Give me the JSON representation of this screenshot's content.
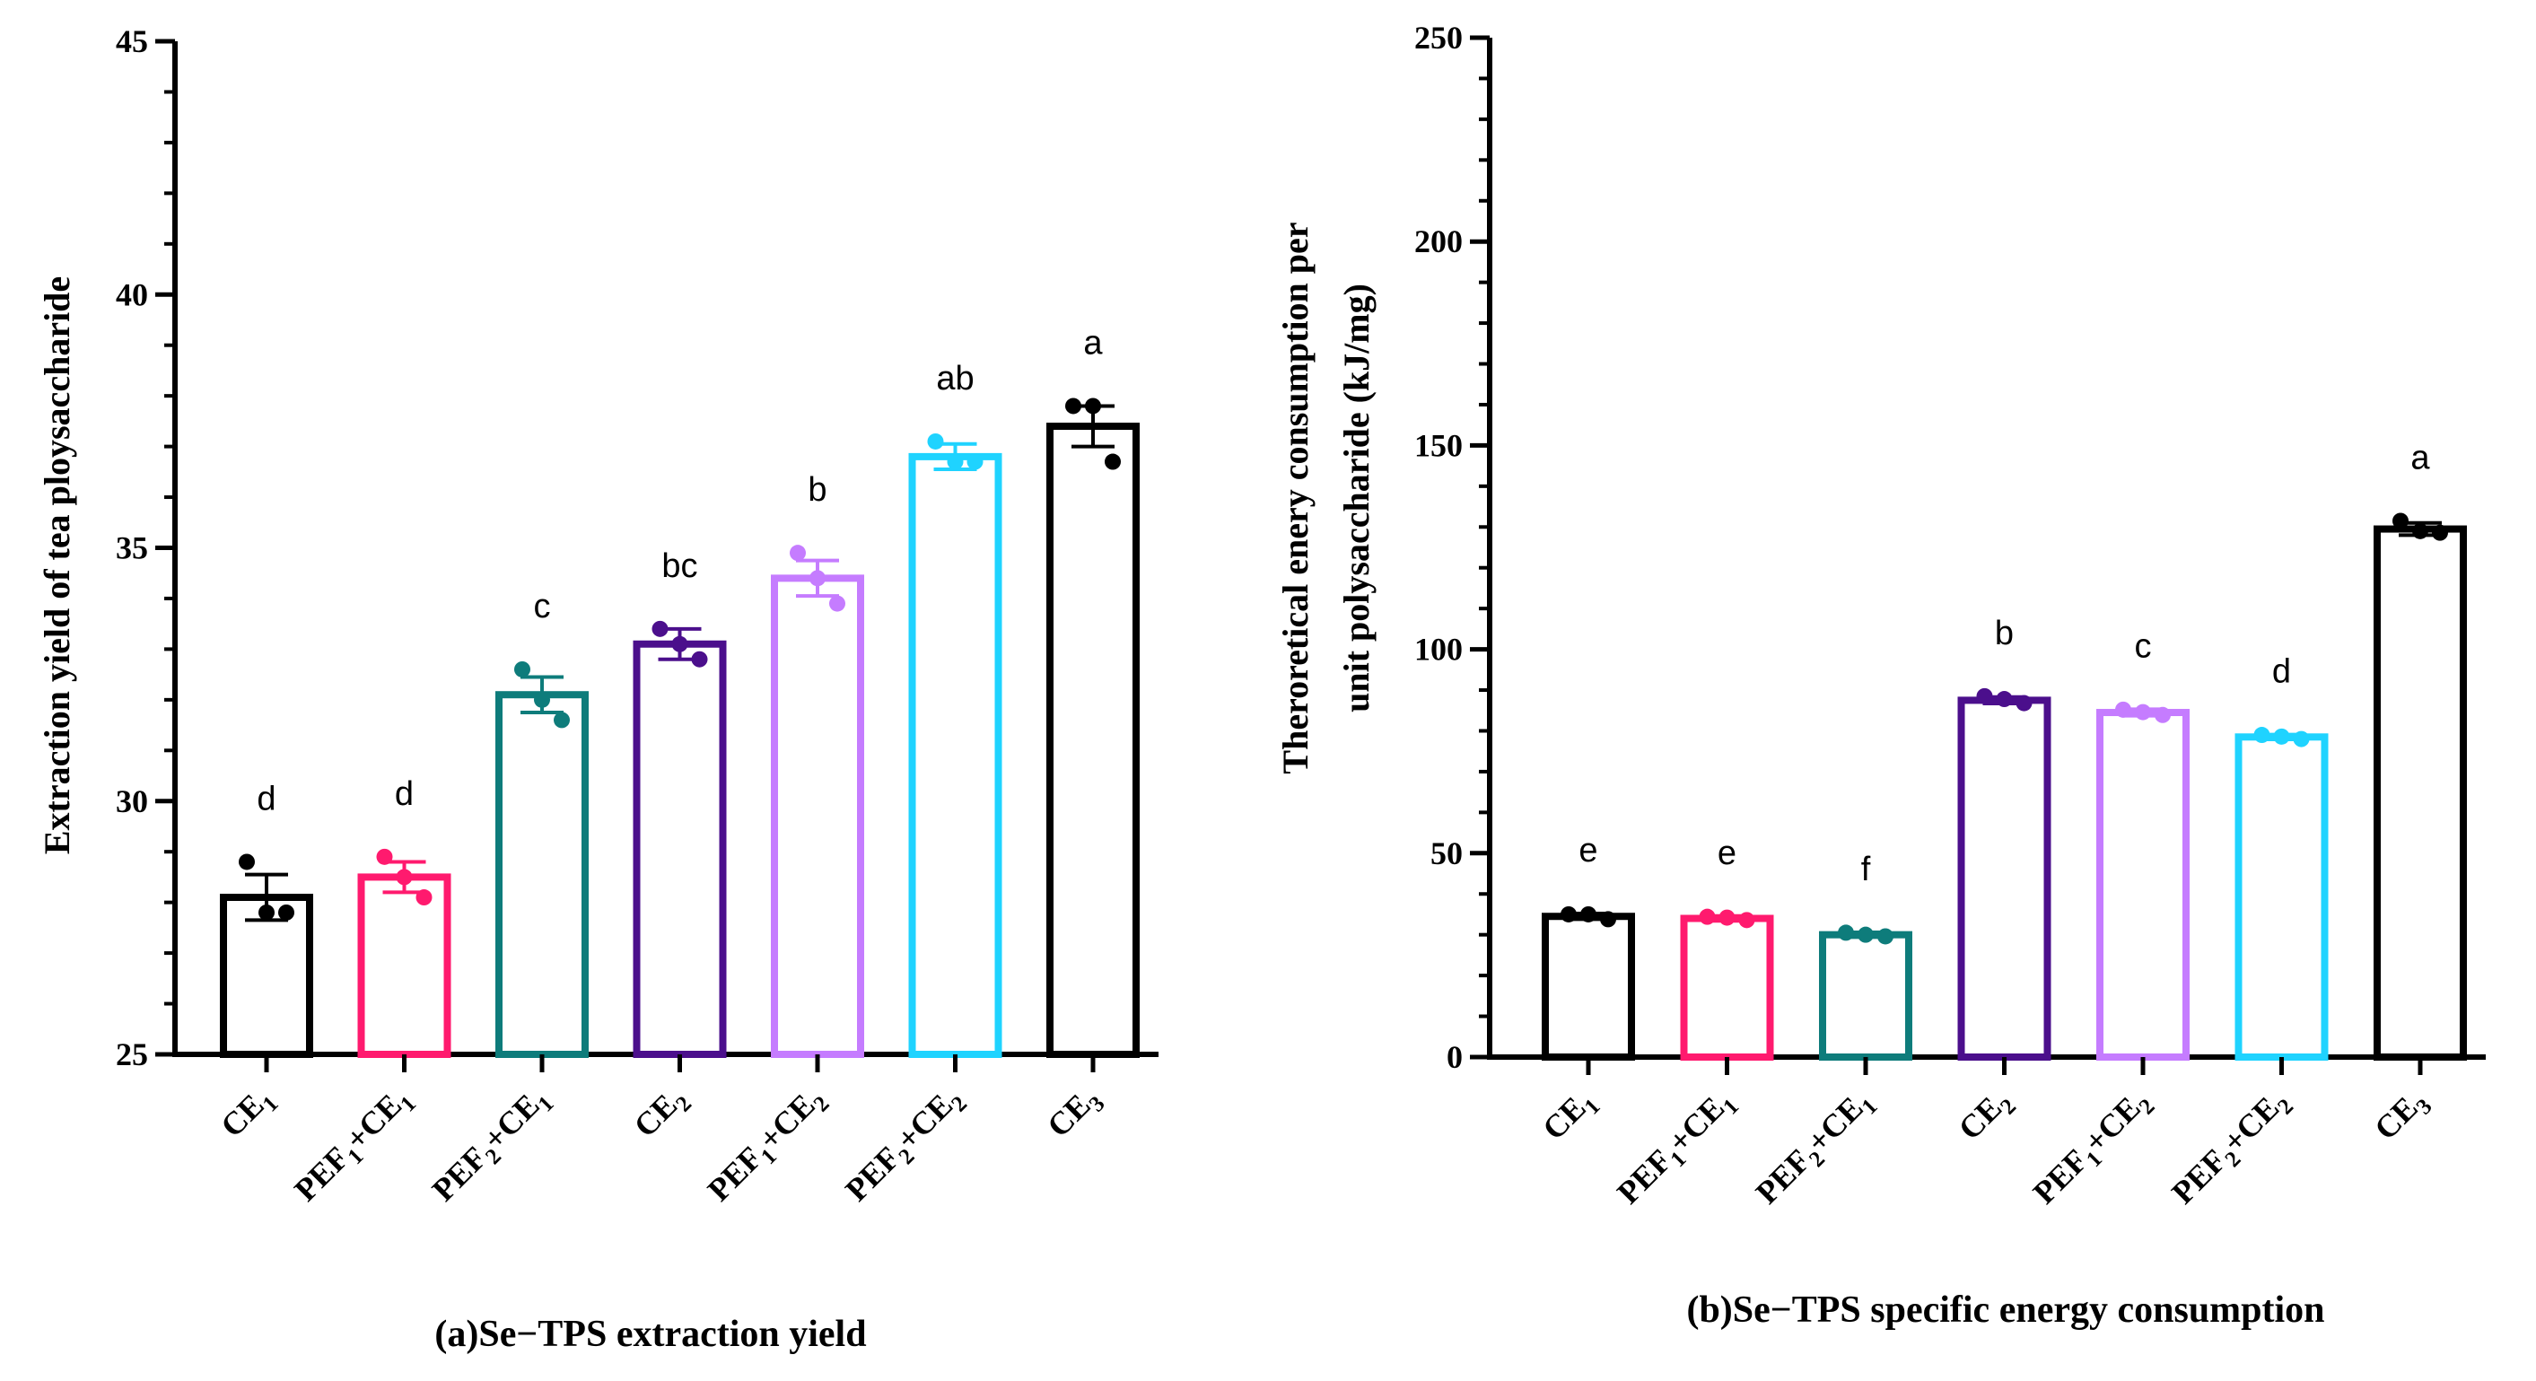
{
  "chart_data": [
    {
      "type": "bar",
      "caption": "(a)Se−TPS extraction yield",
      "ylabel": "Extraction yield of tea ploysaccharide",
      "xlabel": "",
      "ylim": [
        25,
        45
      ],
      "yticks": [
        25,
        30,
        35,
        40,
        45
      ],
      "grid": false,
      "categories": [
        {
          "base": "CE",
          "sub": "1",
          "prefix": ""
        },
        {
          "base": "CE",
          "sub": "1",
          "prefix": "PEF1"
        },
        {
          "base": "CE",
          "sub": "1",
          "prefix": "PEF2"
        },
        {
          "base": "CE",
          "sub": "2",
          "prefix": ""
        },
        {
          "base": "CE",
          "sub": "2",
          "prefix": "PEF1"
        },
        {
          "base": "CE",
          "sub": "2",
          "prefix": "PEF2"
        },
        {
          "base": "CE",
          "sub": "3",
          "prefix": ""
        }
      ],
      "colors": [
        "#000000",
        "#ff1a6e",
        "#0e7c7b",
        "#4b0f8c",
        "#c57cff",
        "#1fd3ff",
        "#000000"
      ],
      "values": [
        28.1,
        28.5,
        32.1,
        33.1,
        34.4,
        36.8,
        37.4
      ],
      "errors": [
        0.45,
        0.3,
        0.35,
        0.3,
        0.35,
        0.25,
        0.4
      ],
      "points": [
        [
          28.8,
          27.8,
          27.8
        ],
        [
          28.9,
          28.5,
          28.1
        ],
        [
          32.6,
          32.0,
          31.6
        ],
        [
          33.4,
          33.1,
          32.8
        ],
        [
          34.9,
          34.4,
          33.9
        ],
        [
          37.1,
          36.7,
          36.7
        ],
        [
          37.8,
          37.8,
          36.7
        ]
      ],
      "significance": [
        "d",
        "d",
        "c",
        "bc",
        "b",
        "ab",
        "a"
      ]
    },
    {
      "type": "bar",
      "caption": "(b)Se−TPS specific energy consumption",
      "ylabel_line1": "Theroretical enery consumption per",
      "ylabel_line2": "unit polysaccharide (kJ/mg)",
      "xlabel": "",
      "ylim": [
        0,
        250
      ],
      "yticks": [
        0,
        50,
        100,
        150,
        200,
        250
      ],
      "grid": false,
      "categories": [
        {
          "base": "CE",
          "sub": "1",
          "prefix": ""
        },
        {
          "base": "CE",
          "sub": "1",
          "prefix": "PEF1"
        },
        {
          "base": "CE",
          "sub": "1",
          "prefix": "PEF2"
        },
        {
          "base": "CE",
          "sub": "2",
          "prefix": ""
        },
        {
          "base": "CE",
          "sub": "2",
          "prefix": "PEF1"
        },
        {
          "base": "CE",
          "sub": "2",
          "prefix": "PEF2"
        },
        {
          "base": "CE",
          "sub": "3",
          "prefix": ""
        }
      ],
      "colors": [
        "#000000",
        "#ff1a6e",
        "#0e7c7b",
        "#4b0f8c",
        "#c57cff",
        "#1fd3ff",
        "#000000"
      ],
      "values": [
        34.5,
        34.0,
        30.0,
        87.5,
        84.5,
        78.5,
        129.5
      ],
      "errors": [
        0.7,
        0.6,
        0.6,
        0.8,
        0.8,
        0.6,
        1.5
      ],
      "points": [
        [
          35.0,
          35.0,
          33.8
        ],
        [
          34.4,
          34.2,
          33.6
        ],
        [
          30.5,
          30.0,
          29.6
        ],
        [
          88.5,
          87.8,
          86.8
        ],
        [
          85.2,
          84.6,
          83.9
        ],
        [
          79.0,
          78.6,
          78.0
        ],
        [
          131.5,
          129.0,
          128.6
        ]
      ],
      "significance": [
        "e",
        "e",
        "f",
        "b",
        "c",
        "d",
        "a"
      ]
    }
  ]
}
